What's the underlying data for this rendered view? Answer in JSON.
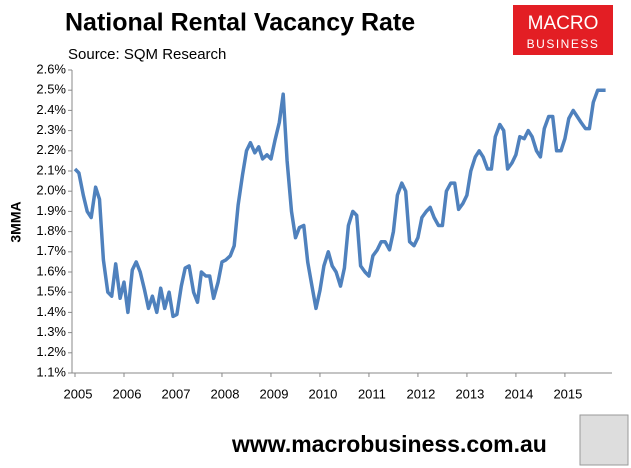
{
  "chart_data": {
    "type": "line",
    "title": "National Rental Vacancy Rate",
    "subtitle": "Source: SQM Research",
    "y_label": "3MMA",
    "x": [
      2005,
      2005.08,
      2005.17,
      2005.25,
      2005.33,
      2005.42,
      2005.5,
      2005.58,
      2005.67,
      2005.75,
      2005.83,
      2005.92,
      2006,
      2006.08,
      2006.17,
      2006.25,
      2006.33,
      2006.42,
      2006.5,
      2006.58,
      2006.67,
      2006.75,
      2006.83,
      2006.92,
      2007,
      2007.08,
      2007.17,
      2007.25,
      2007.33,
      2007.42,
      2007.5,
      2007.58,
      2007.67,
      2007.75,
      2007.83,
      2007.92,
      2008,
      2008.08,
      2008.17,
      2008.25,
      2008.33,
      2008.42,
      2008.5,
      2008.58,
      2008.67,
      2008.75,
      2008.83,
      2008.92,
      2009,
      2009.08,
      2009.17,
      2009.25,
      2009.33,
      2009.42,
      2009.5,
      2009.58,
      2009.67,
      2009.75,
      2009.83,
      2009.92,
      2010,
      2010.08,
      2010.17,
      2010.25,
      2010.33,
      2010.42,
      2010.5,
      2010.58,
      2010.67,
      2010.75,
      2010.83,
      2010.92,
      2011,
      2011.08,
      2011.17,
      2011.25,
      2011.33,
      2011.42,
      2011.5,
      2011.58,
      2011.67,
      2011.75,
      2011.83,
      2011.92,
      2012,
      2012.08,
      2012.17,
      2012.25,
      2012.33,
      2012.42,
      2012.5,
      2012.58,
      2012.67,
      2012.75,
      2012.83,
      2012.92,
      2013,
      2013.08,
      2013.17,
      2013.25,
      2013.33,
      2013.42,
      2013.5,
      2013.58,
      2013.67,
      2013.75,
      2013.83,
      2013.92,
      2014,
      2014.08,
      2014.17,
      2014.25,
      2014.33,
      2014.42,
      2014.5,
      2014.58,
      2014.67,
      2014.75,
      2014.83,
      2014.92,
      2015,
      2015.08,
      2015.17,
      2015.25,
      2015.33,
      2015.42,
      2015.5,
      2015.58,
      2015.67,
      2015.75,
      2015.83
    ],
    "series": [
      {
        "name": "3MMA",
        "color": "#4f81bd",
        "values": [
          2.11,
          2.09,
          1.98,
          1.9,
          1.87,
          2.02,
          1.96,
          1.66,
          1.5,
          1.48,
          1.64,
          1.47,
          1.55,
          1.4,
          1.61,
          1.65,
          1.6,
          1.51,
          1.42,
          1.48,
          1.4,
          1.52,
          1.42,
          1.5,
          1.38,
          1.39,
          1.53,
          1.62,
          1.63,
          1.5,
          1.45,
          1.6,
          1.58,
          1.58,
          1.47,
          1.55,
          1.65,
          1.66,
          1.68,
          1.73,
          1.93,
          2.08,
          2.2,
          2.24,
          2.19,
          2.22,
          2.16,
          2.18,
          2.16,
          2.25,
          2.34,
          2.48,
          2.15,
          1.9,
          1.77,
          1.82,
          1.83,
          1.65,
          1.54,
          1.42,
          1.51,
          1.63,
          1.7,
          1.63,
          1.6,
          1.53,
          1.62,
          1.83,
          1.9,
          1.88,
          1.63,
          1.6,
          1.58,
          1.68,
          1.71,
          1.75,
          1.75,
          1.71,
          1.8,
          1.98,
          2.04,
          2.0,
          1.75,
          1.73,
          1.77,
          1.87,
          1.9,
          1.92,
          1.87,
          1.83,
          1.83,
          2.0,
          2.04,
          2.04,
          1.91,
          1.94,
          1.98,
          2.1,
          2.17,
          2.2,
          2.17,
          2.11,
          2.11,
          2.27,
          2.33,
          2.3,
          2.11,
          2.14,
          2.18,
          2.27,
          2.26,
          2.3,
          2.27,
          2.2,
          2.17,
          2.31,
          2.37,
          2.37,
          2.2,
          2.2,
          2.26,
          2.36,
          2.4,
          2.37,
          2.34,
          2.31,
          2.31,
          2.44,
          2.5,
          2.5,
          2.5
        ]
      }
    ],
    "xlim": [
      2005,
      2015.9
    ],
    "xticks": [
      2005,
      2006,
      2007,
      2008,
      2009,
      2010,
      2011,
      2012,
      2013,
      2014,
      2015
    ],
    "ylim": [
      1.1,
      2.6
    ],
    "yticks": [
      {
        "value": 1.1,
        "label": "1.1%"
      },
      {
        "value": 1.2,
        "label": "1.2%"
      },
      {
        "value": 1.3,
        "label": "1.3%"
      },
      {
        "value": 1.4,
        "label": "1.4%"
      },
      {
        "value": 1.5,
        "label": "1.5%"
      },
      {
        "value": 1.6,
        "label": "1.6%"
      },
      {
        "value": 1.7,
        "label": "1.7%"
      },
      {
        "value": 1.8,
        "label": "1.8%"
      },
      {
        "value": 1.9,
        "label": "1.9%"
      },
      {
        "value": 2.0,
        "label": "2.0%"
      },
      {
        "value": 2.1,
        "label": "2.1%"
      },
      {
        "value": 2.2,
        "label": "2.2%"
      },
      {
        "value": 2.3,
        "label": "2.3%"
      },
      {
        "value": 2.4,
        "label": "2.4%"
      },
      {
        "value": 2.5,
        "label": "2.5%"
      },
      {
        "value": 2.6,
        "label": "2.6%"
      }
    ],
    "grid": false,
    "legend": false
  },
  "logo": {
    "line1": "MACRO",
    "line2": "BUSINESS"
  },
  "footer": "www.macrobusiness.com.au"
}
